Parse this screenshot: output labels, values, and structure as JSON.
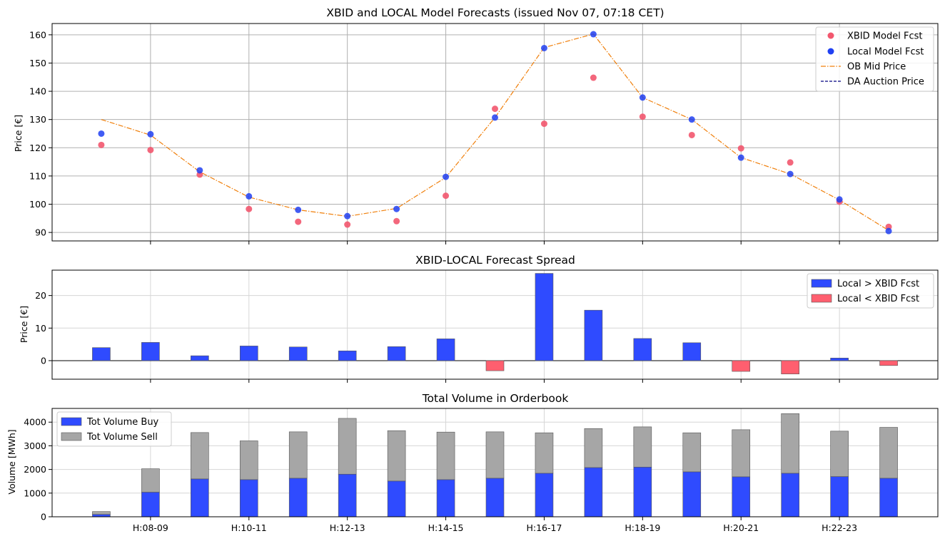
{
  "colors": {
    "xbid": "#f2576e",
    "local": "#2040f2",
    "ob_mid": "#f07f0a",
    "da_auction": "#000080",
    "spread_pos": "#2f4bff",
    "spread_neg": "#ff5f6f",
    "vol_buy": "#2f4bff",
    "vol_sell": "#a6a6a6"
  },
  "chart_data": [
    {
      "id": "forecasts",
      "type": "scatter",
      "title": "XBID and LOCAL Model Forecasts (issued Nov 07, 07:18 CET)",
      "ylabel": "Price [€]",
      "xlabel": "",
      "ylim": [
        87,
        164
      ],
      "yticks": [
        90,
        100,
        110,
        120,
        130,
        140,
        150,
        160
      ],
      "grid": true,
      "legend_position": "top-right",
      "series": [
        {
          "name": "XBID Model Fcst",
          "kind": "points",
          "x": [
            7,
            8,
            9,
            10,
            11,
            12,
            13,
            14,
            15,
            16,
            17,
            18,
            19,
            20,
            21,
            22,
            23
          ],
          "values": [
            121,
            119.2,
            110.5,
            98.3,
            93.8,
            92.8,
            94,
            103,
            133.8,
            128.5,
            144.8,
            131,
            124.5,
            119.8,
            114.8,
            100.9,
            92
          ]
        },
        {
          "name": "Local Model Fcst",
          "kind": "points",
          "x": [
            7,
            8,
            9,
            10,
            11,
            12,
            13,
            14,
            15,
            16,
            17,
            18,
            19,
            20,
            21,
            22,
            23
          ],
          "values": [
            125,
            124.8,
            112,
            102.8,
            98,
            95.8,
            98.3,
            109.7,
            130.7,
            155.3,
            160.2,
            137.8,
            130,
            116.5,
            110.7,
            101.7,
            90.5
          ]
        },
        {
          "name": "OB Mid Price",
          "kind": "line",
          "x": [
            7,
            8,
            9,
            10,
            11,
            12,
            13,
            14,
            15,
            16,
            17,
            18,
            19,
            20,
            21,
            22,
            23
          ],
          "values": [
            130,
            124.5,
            111.5,
            102.5,
            98,
            95.7,
            98.5,
            109.5,
            130.7,
            155.5,
            160.3,
            137.8,
            130,
            116.5,
            110.7,
            101.5,
            90.7
          ]
        },
        {
          "name": "DA Auction Price",
          "kind": "line",
          "x": [],
          "values": []
        }
      ]
    },
    {
      "id": "spread",
      "type": "bar",
      "title": "XBID-LOCAL Forecast Spread",
      "ylabel": "Price [€]",
      "xlabel": "",
      "ylim": [
        -5.7,
        27.8
      ],
      "yticks": [
        0,
        10,
        20
      ],
      "grid": true,
      "legend_position": "top-right",
      "legend": [
        "Local > XBID Fcst",
        "Local < XBID Fcst"
      ],
      "x": [
        7,
        8,
        9,
        10,
        11,
        12,
        13,
        14,
        15,
        16,
        17,
        18,
        19,
        20,
        21,
        22,
        23
      ],
      "values": [
        4,
        5.6,
        1.5,
        4.5,
        4.2,
        3,
        4.3,
        6.7,
        -3.1,
        26.8,
        15.5,
        6.8,
        5.5,
        -3.3,
        -4.1,
        0.8,
        -1.5
      ]
    },
    {
      "id": "volume",
      "type": "bar",
      "title": "Total Volume in Orderbook",
      "ylabel": "Volume [MWh]",
      "xlabel": "",
      "ylim": [
        0,
        4580
      ],
      "yticks": [
        0,
        1000,
        2000,
        3000,
        4000
      ],
      "grid": true,
      "legend_position": "top-left",
      "stacked": true,
      "x": [
        7,
        8,
        9,
        10,
        11,
        12,
        13,
        14,
        15,
        16,
        17,
        18,
        19,
        20,
        21,
        22,
        23
      ],
      "series": [
        {
          "name": "Tot Volume Buy",
          "values": [
            100,
            1040,
            1600,
            1570,
            1630,
            1800,
            1510,
            1570,
            1630,
            1840,
            2080,
            2100,
            1900,
            1690,
            1840,
            1700,
            1630
          ]
        },
        {
          "name": "Tot Volume Sell",
          "values": [
            120,
            990,
            1960,
            1640,
            1960,
            2360,
            2130,
            2010,
            1960,
            1710,
            1650,
            1700,
            1650,
            1990,
            2520,
            1920,
            2150
          ]
        }
      ],
      "xticks": [
        8,
        10,
        12,
        14,
        16,
        18,
        20,
        22
      ],
      "xtick_labels": [
        "H:08-09",
        "H:10-11",
        "H:12-13",
        "H:14-15",
        "H:16-17",
        "H:18-19",
        "H:20-21",
        "H:22-23"
      ]
    }
  ]
}
